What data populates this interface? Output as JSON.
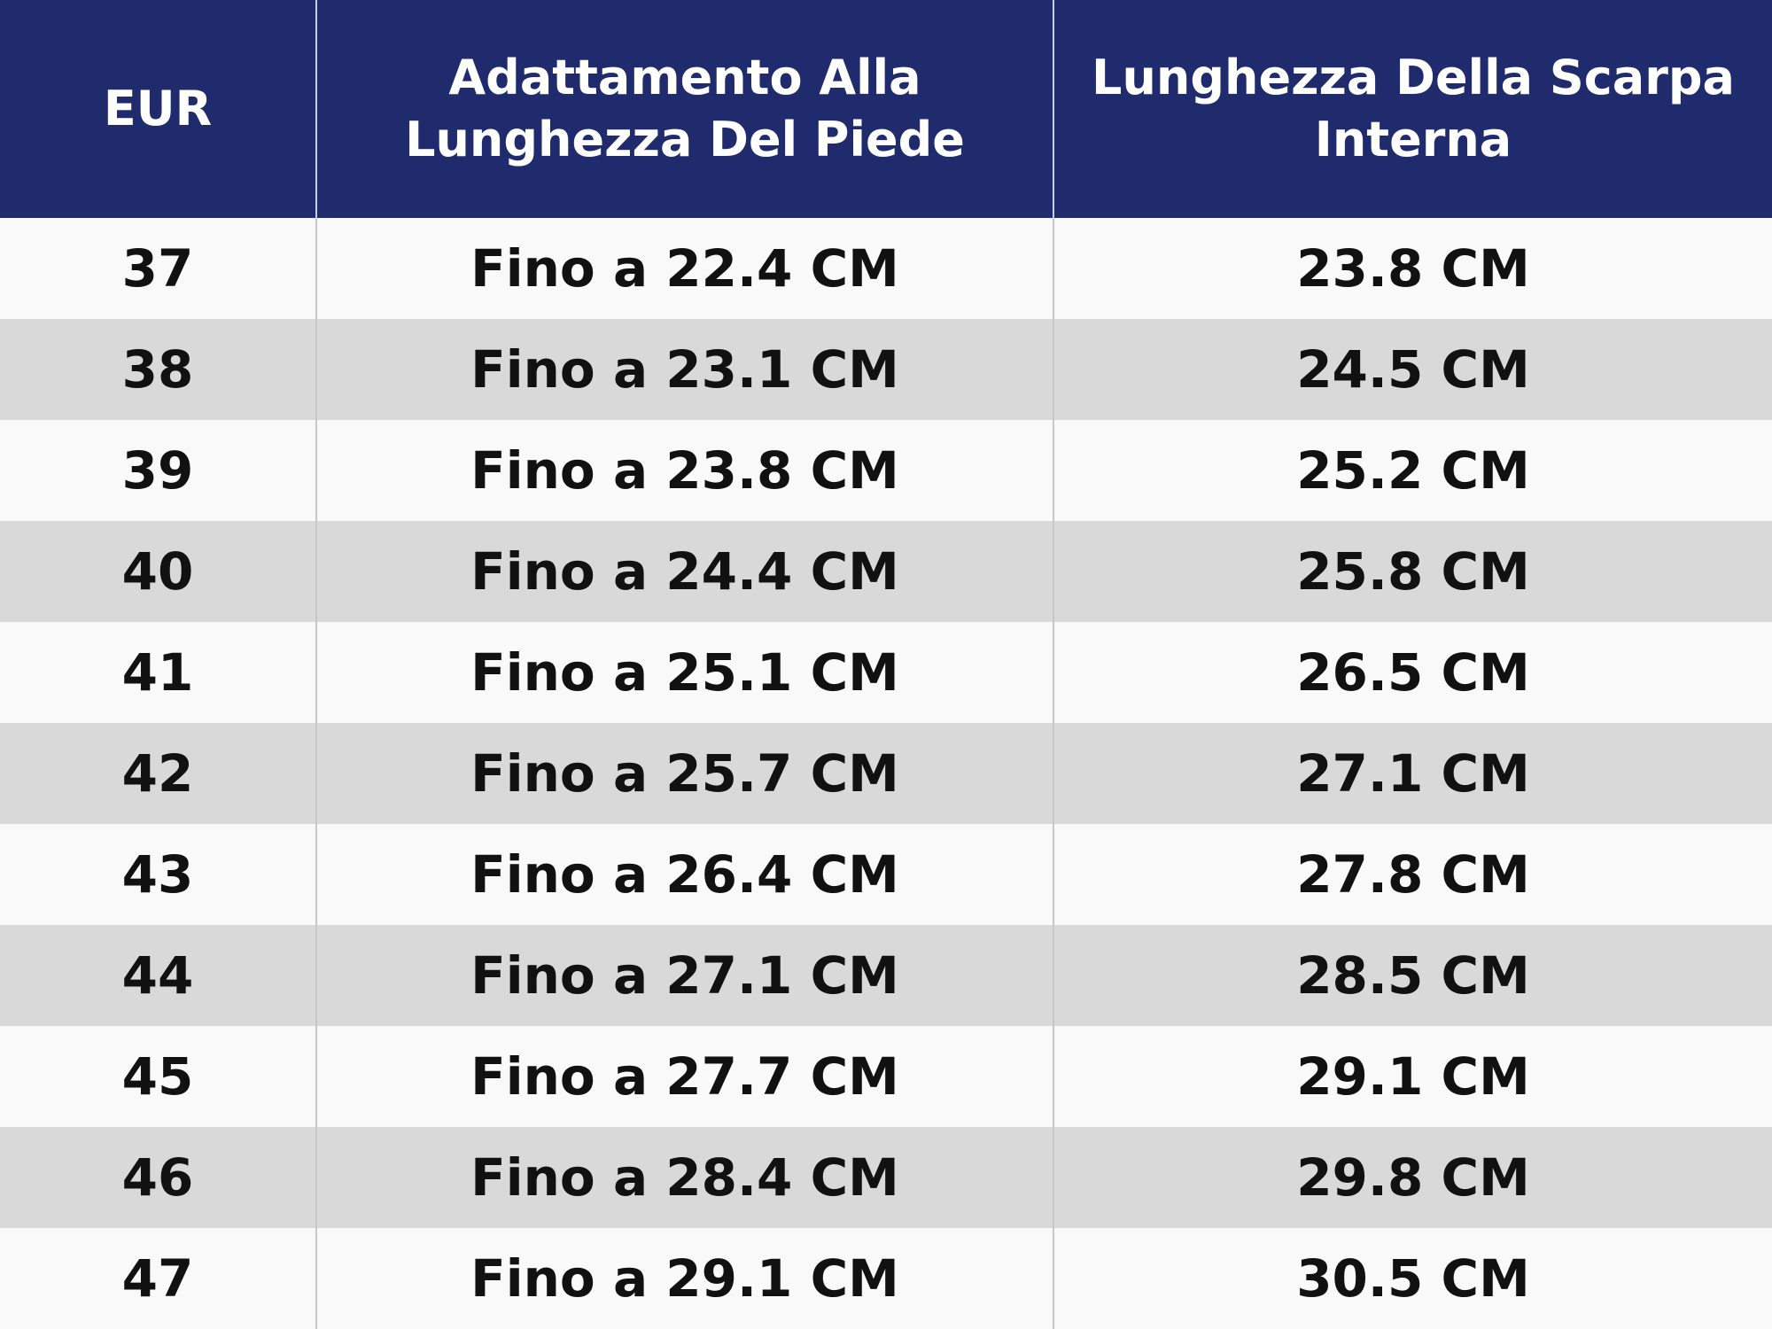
{
  "table": {
    "header": [
      "EUR",
      "Adattamento Alla Lunghezza Del Piede",
      "Lunghezza Della Scarpa Interna"
    ],
    "rows": [
      [
        "37",
        "Fino a 22.4 CM",
        "23.8 CM"
      ],
      [
        "38",
        "Fino a 23.1 CM",
        "24.5 CM"
      ],
      [
        "39",
        "Fino a 23.8 CM",
        "25.2 CM"
      ],
      [
        "40",
        "Fino a 24.4 CM",
        "25.8 CM"
      ],
      [
        "41",
        "Fino a 25.1 CM",
        "26.5 CM"
      ],
      [
        "42",
        "Fino a 25.7 CM",
        "27.1 CM"
      ],
      [
        "43",
        "Fino a 26.4 CM",
        "27.8 CM"
      ],
      [
        "44",
        "Fino a 27.1 CM",
        "28.5 CM"
      ],
      [
        "45",
        "Fino a 27.7 CM",
        "29.1 CM"
      ],
      [
        "46",
        "Fino a 28.4 CM",
        "29.8 CM"
      ],
      [
        "47",
        "Fino a 29.1 CM",
        "30.5 CM"
      ]
    ]
  }
}
